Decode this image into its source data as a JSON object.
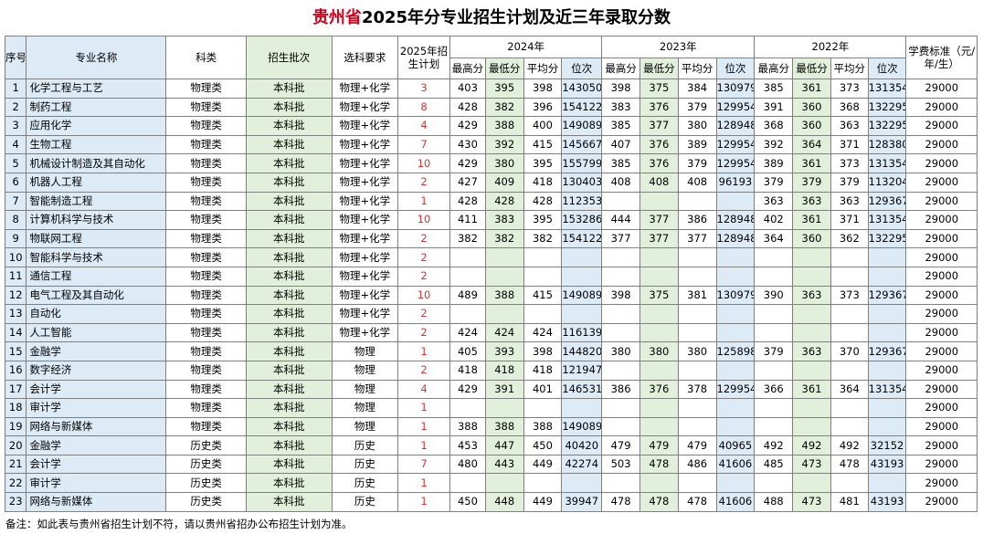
{
  "title": {
    "province": "贵州省",
    "rest": "2025年分专业招生计划及近三年录取分数"
  },
  "headers": {
    "seq": "序号",
    "major": "专业名称",
    "subject": "科类",
    "batch": "招生批次",
    "requirement": "选科要求",
    "plan": "2025年招生计划",
    "year2024": "2024年",
    "year2023": "2023年",
    "year2022": "2022年",
    "fee": "学费标准（元/年/生）",
    "max": "最高分",
    "min": "最低分",
    "avg": "平均分",
    "rank": "位次"
  },
  "rows": [
    [
      "1",
      "化学工程与工艺",
      "物理类",
      "本科批",
      "物理+化学",
      "3",
      "403",
      "395",
      "398",
      "143050",
      "398",
      "375",
      "384",
      "130979",
      "385",
      "361",
      "373",
      "131354",
      "29000"
    ],
    [
      "2",
      "制药工程",
      "物理类",
      "本科批",
      "物理+化学",
      "8",
      "428",
      "382",
      "396",
      "154122",
      "383",
      "376",
      "379",
      "129954",
      "391",
      "360",
      "368",
      "132295",
      "29000"
    ],
    [
      "3",
      "应用化学",
      "物理类",
      "本科批",
      "物理+化学",
      "4",
      "429",
      "388",
      "400",
      "149089",
      "385",
      "377",
      "380",
      "128948",
      "368",
      "360",
      "363",
      "132295",
      "29000"
    ],
    [
      "4",
      "生物工程",
      "物理类",
      "本科批",
      "物理+化学",
      "7",
      "430",
      "392",
      "415",
      "145667",
      "407",
      "376",
      "389",
      "129954",
      "392",
      "364",
      "371",
      "128380",
      "29000"
    ],
    [
      "5",
      "机械设计制造及其自动化",
      "物理类",
      "本科批",
      "物理+化学",
      "10",
      "429",
      "380",
      "395",
      "155799",
      "385",
      "376",
      "379",
      "129954",
      "389",
      "361",
      "373",
      "131354",
      "29000"
    ],
    [
      "6",
      "机器人工程",
      "物理类",
      "本科批",
      "物理+化学",
      "2",
      "427",
      "409",
      "418",
      "130403",
      "408",
      "408",
      "408",
      "96193",
      "379",
      "379",
      "379",
      "113204",
      "29000"
    ],
    [
      "7",
      "智能制造工程",
      "物理类",
      "本科批",
      "物理+化学",
      "1",
      "428",
      "428",
      "428",
      "112353",
      "",
      "",
      "",
      "",
      "363",
      "363",
      "363",
      "129367",
      "29000"
    ],
    [
      "8",
      "计算机科学与技术",
      "物理类",
      "本科批",
      "物理+化学",
      "10",
      "411",
      "383",
      "395",
      "153286",
      "444",
      "377",
      "386",
      "128948",
      "402",
      "361",
      "371",
      "131354",
      "29000"
    ],
    [
      "9",
      "物联网工程",
      "物理类",
      "本科批",
      "物理+化学",
      "2",
      "382",
      "382",
      "382",
      "154122",
      "377",
      "377",
      "377",
      "128948",
      "364",
      "360",
      "362",
      "132295",
      "29000"
    ],
    [
      "10",
      "智能科学与技术",
      "物理类",
      "本科批",
      "物理+化学",
      "2",
      "",
      "",
      "",
      "",
      "",
      "",
      "",
      "",
      "",
      "",
      "",
      "",
      "29000"
    ],
    [
      "11",
      "通信工程",
      "物理类",
      "本科批",
      "物理+化学",
      "2",
      "",
      "",
      "",
      "",
      "",
      "",
      "",
      "",
      "",
      "",
      "",
      "",
      "29000"
    ],
    [
      "12",
      "电气工程及其自动化",
      "物理类",
      "本科批",
      "物理+化学",
      "10",
      "489",
      "388",
      "415",
      "149089",
      "398",
      "375",
      "381",
      "130979",
      "390",
      "363",
      "373",
      "129367",
      "29000"
    ],
    [
      "13",
      "自动化",
      "物理类",
      "本科批",
      "物理+化学",
      "2",
      "",
      "",
      "",
      "",
      "",
      "",
      "",
      "",
      "",
      "",
      "",
      "",
      "29000"
    ],
    [
      "14",
      "人工智能",
      "物理类",
      "本科批",
      "物理+化学",
      "2",
      "424",
      "424",
      "424",
      "116139",
      "",
      "",
      "",
      "",
      "",
      "",
      "",
      "",
      "29000"
    ],
    [
      "15",
      "金融学",
      "物理类",
      "本科批",
      "物理",
      "1",
      "405",
      "393",
      "398",
      "144820",
      "380",
      "380",
      "380",
      "125898",
      "379",
      "363",
      "370",
      "129367",
      "29000"
    ],
    [
      "16",
      "数字经济",
      "物理类",
      "本科批",
      "物理",
      "2",
      "418",
      "418",
      "418",
      "121947",
      "",
      "",
      "",
      "",
      "",
      "",
      "",
      "",
      "29000"
    ],
    [
      "17",
      "会计学",
      "物理类",
      "本科批",
      "物理",
      "4",
      "429",
      "391",
      "401",
      "146531",
      "386",
      "376",
      "378",
      "129954",
      "366",
      "361",
      "364",
      "131354",
      "29000"
    ],
    [
      "18",
      "审计学",
      "物理类",
      "本科批",
      "物理",
      "1",
      "",
      "",
      "",
      "",
      "",
      "",
      "",
      "",
      "",
      "",
      "",
      "",
      "29000"
    ],
    [
      "19",
      "网络与新媒体",
      "物理类",
      "本科批",
      "物理",
      "1",
      "388",
      "388",
      "388",
      "149089",
      "",
      "",
      "",
      "",
      "",
      "",
      "",
      "",
      "29000"
    ],
    [
      "20",
      "金融学",
      "历史类",
      "本科批",
      "历史",
      "1",
      "453",
      "447",
      "450",
      "40420",
      "479",
      "479",
      "479",
      "40965",
      "492",
      "492",
      "492",
      "32152",
      "29000"
    ],
    [
      "21",
      "会计学",
      "历史类",
      "本科批",
      "历史",
      "7",
      "480",
      "443",
      "449",
      "42274",
      "503",
      "478",
      "486",
      "41606",
      "485",
      "473",
      "478",
      "43193",
      "29000"
    ],
    [
      "22",
      "审计学",
      "历史类",
      "本科批",
      "历史",
      "1",
      "",
      "",
      "",
      "",
      "",
      "",
      "",
      "",
      "",
      "",
      "",
      "",
      "29000"
    ],
    [
      "23",
      "网络与新媒体",
      "历史类",
      "本科批",
      "历史",
      "1",
      "450",
      "448",
      "449",
      "39947",
      "478",
      "478",
      "478",
      "41606",
      "488",
      "473",
      "481",
      "43193",
      "29000"
    ]
  ],
  "note": "备注：如此表与贵州省招生计划不符，请以贵州省招办公布招生计划为准。",
  "colors": {
    "title_red": "#d0021b",
    "plan_red": "#e03030",
    "green": "#e2efda",
    "blue": "#ddebf7",
    "border": "#7f7f7f"
  }
}
